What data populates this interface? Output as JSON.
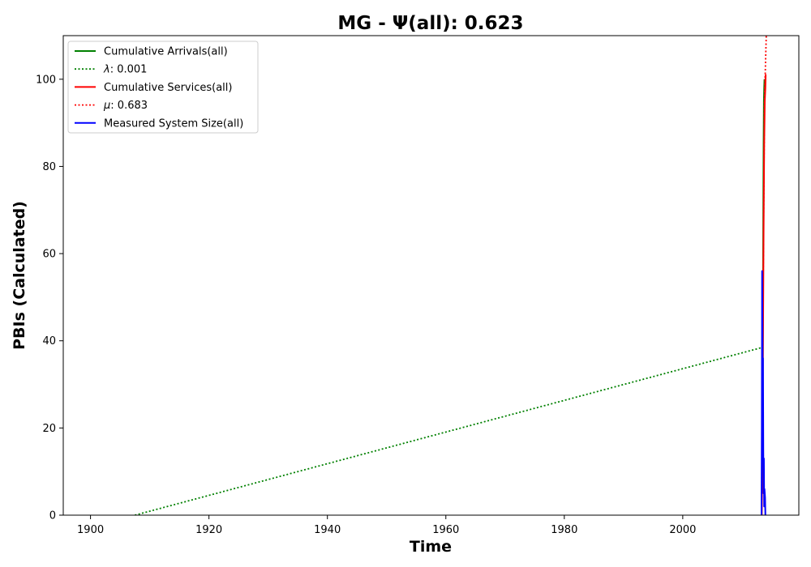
{
  "chart_data": {
    "type": "line",
    "title": "MG -  Ψ(all): 0.623",
    "xlabel": "Time",
    "ylabel": "PBIs (Calculated)",
    "xlim": [
      1895.4,
      2019.6
    ],
    "ylim": [
      0,
      110
    ],
    "xticks": [
      1900,
      1920,
      1940,
      1960,
      1980,
      2000
    ],
    "yticks": [
      0,
      20,
      40,
      60,
      80,
      100
    ],
    "grid": false,
    "legend_position": "top-left",
    "series": [
      {
        "name": "Cumulative Arrivals(all)",
        "color": "#008000",
        "style": "solid",
        "x": [
          2013.3,
          2013.4,
          2013.5,
          2013.55,
          2013.6,
          2013.65,
          2013.7,
          2013.75,
          2013.8
        ],
        "y": [
          0,
          10,
          30,
          50,
          70,
          85,
          95,
          98,
          100
        ]
      },
      {
        "name": "λ: 0.001",
        "label_prefix": "λ",
        "label_value": ": 0.001",
        "color": "#008000",
        "style": "dotted",
        "x": [
          1907.5,
          2013.5
        ],
        "y": [
          0,
          38.5
        ]
      },
      {
        "name": "Cumulative Services(all)",
        "color": "#ff0000",
        "style": "solid",
        "x": [
          2013.35,
          2013.45,
          2013.55,
          2013.65,
          2013.75,
          2013.85,
          2013.95,
          2014.0,
          2013.9,
          2013.95
        ],
        "y": [
          0,
          15,
          40,
          65,
          85,
          95,
          98,
          101,
          97,
          100
        ]
      },
      {
        "name": "μ: 0.683",
        "label_prefix": "μ",
        "label_value": ": 0.683",
        "color": "#ff0000",
        "style": "dotted",
        "x": [
          2013.3,
          2013.8,
          2014.2
        ],
        "y": [
          0,
          95,
          115
        ]
      },
      {
        "name": "Measured System Size(all)",
        "color": "#0000ff",
        "style": "solid",
        "x": [
          2013.3,
          2013.35,
          2013.4,
          2013.45,
          2013.5,
          2013.55,
          2013.6,
          2013.65,
          2013.7,
          2013.75,
          2013.8,
          2013.85,
          2013.9,
          2013.95,
          2014.0
        ],
        "y": [
          0,
          20,
          56,
          45,
          30,
          36,
          15,
          5,
          13,
          2,
          6,
          5,
          4,
          0,
          0
        ]
      }
    ]
  }
}
